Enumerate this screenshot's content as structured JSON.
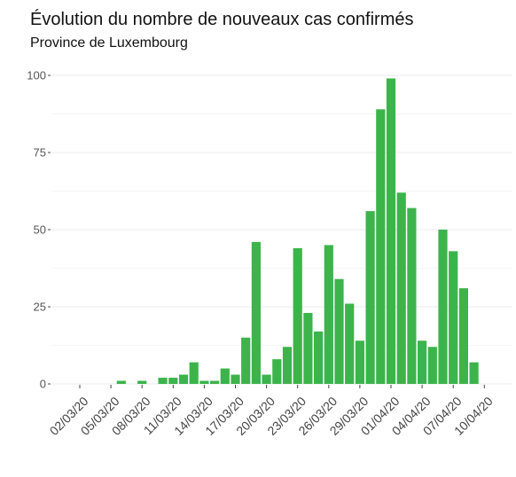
{
  "chart_data": {
    "type": "bar",
    "title": "Évolution du nombre de nouveaux cas confirmés",
    "subtitle": "Province de Luxembourg",
    "xlabel": "",
    "ylabel": "",
    "ylim": [
      0,
      100
    ],
    "yticks": [
      0,
      25,
      50,
      75,
      100
    ],
    "grid": true,
    "legend": "none",
    "bar_color": "#3cb44b",
    "start_date": "02/03/20",
    "x_tick_labels": [
      "02/03/20",
      "05/03/20",
      "08/03/20",
      "11/03/20",
      "14/03/20",
      "17/03/20",
      "20/03/20",
      "23/03/20",
      "26/03/20",
      "29/03/20",
      "01/04/20",
      "04/04/20",
      "07/04/20",
      "10/04/20"
    ],
    "categories": [
      "02/03/20",
      "03/03/20",
      "04/03/20",
      "05/03/20",
      "06/03/20",
      "07/03/20",
      "08/03/20",
      "09/03/20",
      "10/03/20",
      "11/03/20",
      "12/03/20",
      "13/03/20",
      "14/03/20",
      "15/03/20",
      "16/03/20",
      "17/03/20",
      "18/03/20",
      "19/03/20",
      "20/03/20",
      "21/03/20",
      "22/03/20",
      "23/03/20",
      "24/03/20",
      "25/03/20",
      "26/03/20",
      "27/03/20",
      "28/03/20",
      "29/03/20",
      "30/03/20",
      "31/03/20",
      "01/04/20",
      "02/04/20",
      "03/04/20",
      "04/04/20",
      "05/04/20",
      "06/04/20",
      "07/04/20",
      "08/04/20",
      "09/04/20",
      "10/04/20"
    ],
    "values": [
      0,
      0,
      0,
      0,
      1,
      0,
      1,
      0,
      2,
      2,
      3,
      7,
      1,
      1,
      5,
      3,
      15,
      46,
      3,
      8,
      12,
      44,
      23,
      17,
      45,
      34,
      26,
      14,
      56,
      89,
      99,
      62,
      57,
      14,
      12,
      50,
      43,
      31,
      7,
      0
    ]
  }
}
